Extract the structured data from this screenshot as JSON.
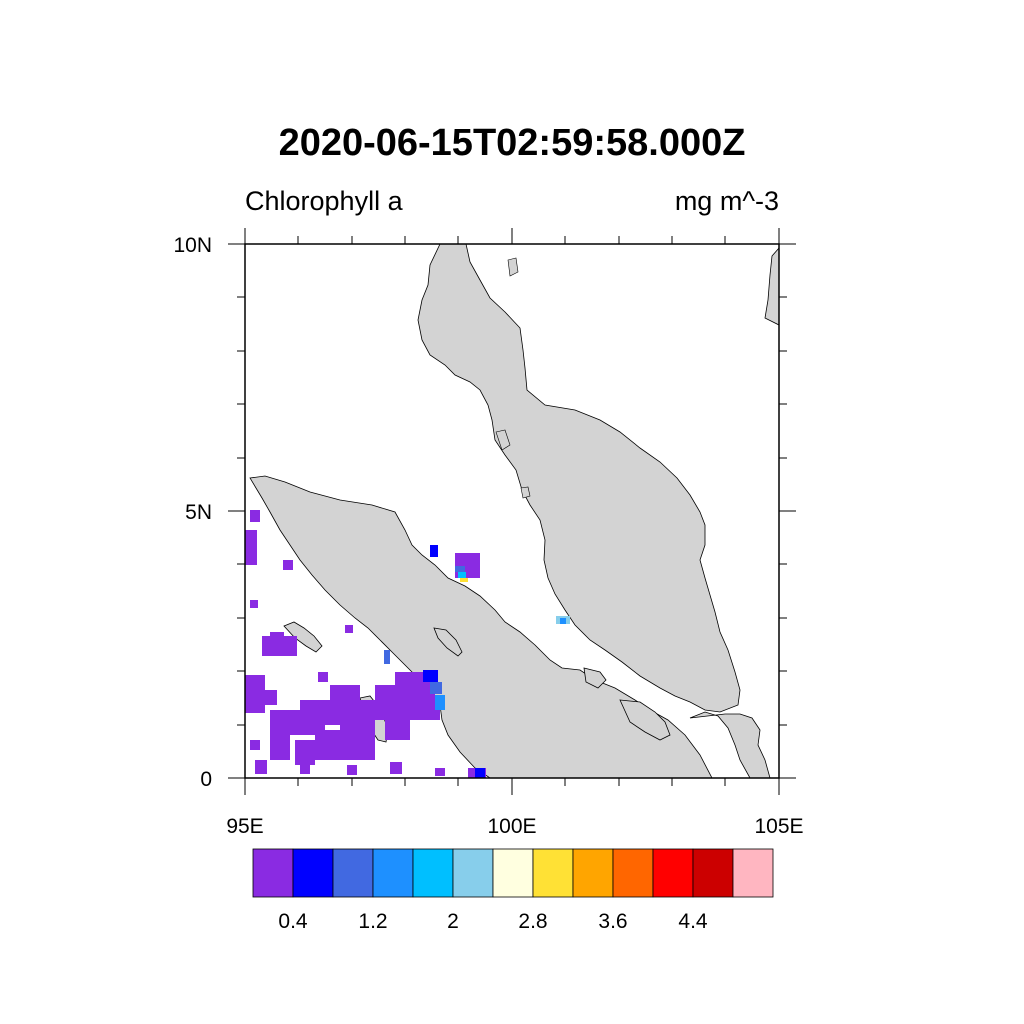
{
  "title": "2020-06-15T02:59:58.000Z",
  "variable_label": "Chlorophyll a",
  "units_label": "mg m^-3",
  "colors": {
    "land": "#d3d3d3",
    "coast": "#000000",
    "ocean": "#ffffff"
  },
  "axes": {
    "x_ticks": [
      "95E",
      "100E",
      "105E"
    ],
    "y_ticks": [
      "10N",
      "5N",
      "0"
    ]
  },
  "colorbar": {
    "colors": [
      "#8a2be2",
      "#0000ff",
      "#4169e1",
      "#1e90ff",
      "#00bfff",
      "#87ceeb",
      "#ffffe0",
      "#ffe135",
      "#ffa500",
      "#ff6600",
      "#ff0000",
      "#cc0000",
      "#ffb6c1"
    ],
    "labels": [
      "0.4",
      "1.2",
      "2",
      "2.8",
      "3.6",
      "4.4"
    ]
  }
}
